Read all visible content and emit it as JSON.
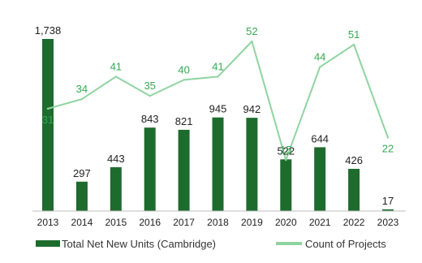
{
  "chart_data": {
    "type": "bar",
    "categories": [
      "2013",
      "2014",
      "2015",
      "2016",
      "2017",
      "2018",
      "2019",
      "2020",
      "2021",
      "2022",
      "2023"
    ],
    "series": [
      {
        "name": "Total Net New Units (Cambridge)",
        "type": "bar",
        "values": [
          1738,
          297,
          443,
          843,
          821,
          945,
          942,
          522,
          644,
          426,
          17
        ],
        "labels": [
          "1,738",
          "297",
          "443",
          "843",
          "821",
          "945",
          "942",
          "522",
          "644",
          "426",
          "17"
        ],
        "color": "#1e6b2e"
      },
      {
        "name": "Count of Projects",
        "type": "line",
        "values": [
          31,
          34,
          41,
          35,
          40,
          41,
          52,
          15,
          44,
          51,
          22
        ],
        "labels": [
          "31",
          "34",
          "41",
          "35",
          "40",
          "41",
          "52",
          "15",
          "44",
          "51",
          "22"
        ],
        "color": "#8fd4a0",
        "label_color": "#35a852"
      }
    ],
    "legend": "bottom",
    "grid": false
  }
}
